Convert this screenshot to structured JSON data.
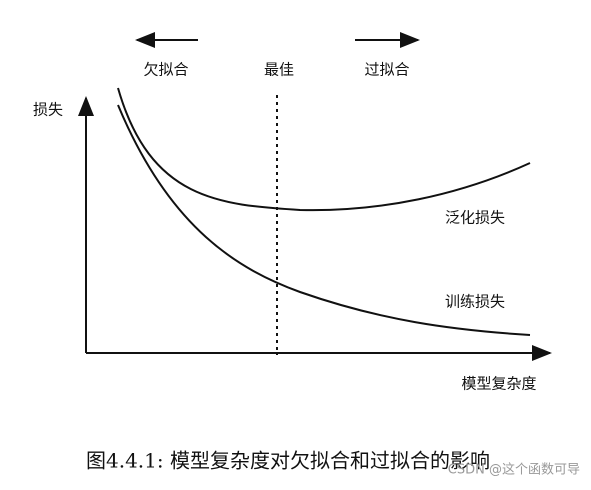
{
  "labels": {
    "underfit": "欠拟合",
    "optimal": "最佳",
    "overfit": "过拟合",
    "y_axis": "损失",
    "x_axis": "模型复杂度"
  },
  "curves": {
    "generalization": "泛化损失",
    "training": "训练损失"
  },
  "caption": "图4.4.1: 模型复杂度对欠拟合和过拟合的影响",
  "watermark": "CSDN @这个函数可导"
}
